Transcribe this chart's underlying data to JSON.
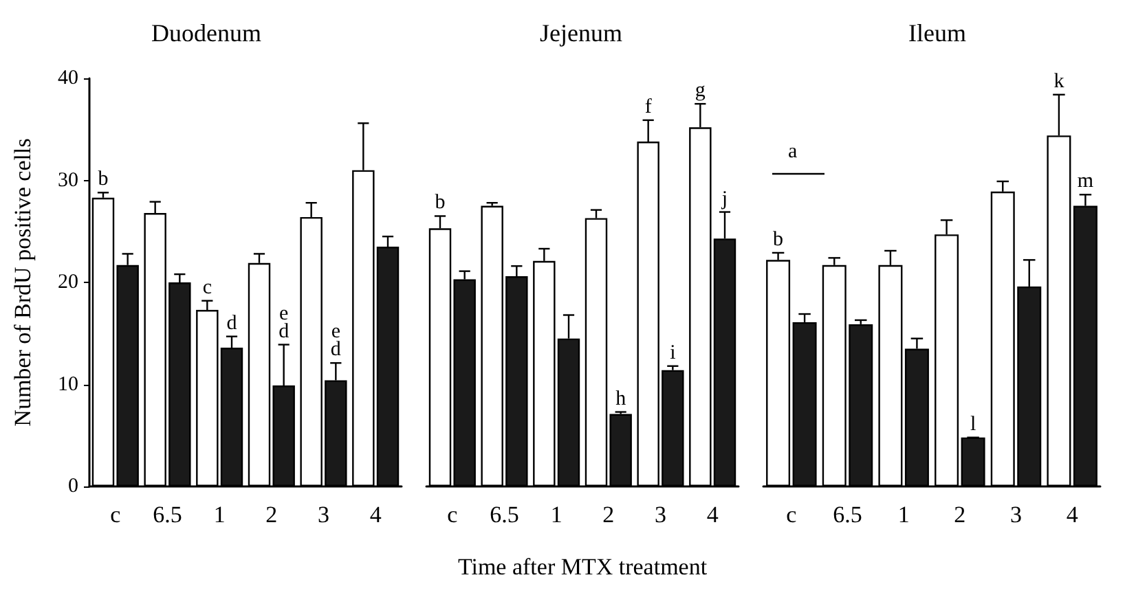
{
  "chart_data": [
    {
      "type": "bar",
      "title": "Duodenum",
      "ylabel": "Number of BrdU positive cells",
      "categories": [
        "c",
        "6.5",
        "1",
        "2",
        "3",
        "4"
      ],
      "ylim": [
        0,
        40
      ],
      "yticks": [
        0,
        10,
        20,
        30,
        40
      ],
      "grid": false,
      "series": [
        {
          "color": "#ffffff",
          "values": [
            28.3,
            26.8,
            17.3,
            21.9,
            26.4,
            31
          ],
          "errors": [
            [
              28.3,
              28.8
            ],
            [
              26.8,
              27.9
            ],
            [
              17.3,
              18.2
            ],
            [
              21.9,
              22.8
            ],
            [
              26.4,
              27.8
            ],
            [
              31,
              35.6
            ]
          ]
        },
        {
          "color": "#1a1a1a",
          "values": [
            21.7,
            20,
            13.6,
            9.9,
            10.4,
            23.5
          ],
          "errors": [
            [
              21.7,
              22.8
            ],
            [
              20,
              20.8
            ],
            [
              13.6,
              14.7
            ],
            [
              9.9,
              13.9
            ],
            [
              10.4,
              12.1
            ],
            [
              23.5,
              24.5
            ]
          ]
        }
      ],
      "annotations": [
        {
          "text": "b",
          "x": "c",
          "y": 28.3
        },
        {
          "text": "c",
          "x": "1",
          "y": 17.3
        },
        {
          "text": "d",
          "x": "1",
          "y": 13.6
        },
        {
          "text": "d",
          "x": "2",
          "y": 9.9
        },
        {
          "text": "e",
          "x": "2",
          "y": 9.9
        },
        {
          "text": "d",
          "x": "3",
          "y": 10.4
        },
        {
          "text": "e",
          "x": "3",
          "y": 10.4
        }
      ]
    },
    {
      "type": "bar",
      "title": "Jejenum",
      "xlabel": "Time after MTX treatment",
      "tick_labels": "x",
      "categories": [
        "c",
        "6.5",
        "1",
        "2",
        "3",
        "4"
      ],
      "ylim": [
        0,
        40
      ],
      "yticks": [
        0,
        10,
        20,
        30,
        40
      ],
      "grid": false,
      "series": [
        {
          "color": "#ffffff",
          "values": [
            25.3,
            27.5,
            22.1,
            26.3,
            33.8,
            35.2
          ],
          "errors": [
            [
              25.3,
              26.5
            ],
            [
              27.5,
              27.8
            ],
            [
              22.1,
              23.3
            ],
            [
              26.3,
              27.1
            ],
            [
              33.8,
              35.9
            ],
            [
              35.2,
              37.5
            ]
          ]
        },
        {
          "color": "#1a1a1a",
          "values": [
            20.3,
            20.6,
            14.5,
            7.1,
            11.4,
            24.3
          ],
          "errors": [
            [
              20.3,
              21.1
            ],
            [
              20.6,
              21.6
            ],
            [
              14.5,
              16.8
            ],
            [
              7.1,
              7.3
            ],
            [
              11.4,
              11.8
            ],
            [
              24.3,
              26.9
            ]
          ]
        }
      ],
      "annotations": [
        {
          "text": "b",
          "x": "c",
          "y": 25.3
        },
        {
          "text": "f",
          "x": "3",
          "y": 33.8
        },
        {
          "text": "g",
          "x": "4",
          "y": 35.2
        },
        {
          "text": "h",
          "x": "2",
          "y": 7.1
        },
        {
          "text": "i",
          "x": "3",
          "y": 11.4
        },
        {
          "text": "j",
          "x": "4",
          "y": 24.3
        }
      ]
    },
    {
      "type": "bar",
      "title": "Ileum",
      "tick_labels": "x",
      "categories": [
        "c",
        "6.5",
        "1",
        "2",
        "3",
        "4"
      ],
      "ylim": [
        0,
        40
      ],
      "yticks": [
        0,
        10,
        20,
        30,
        40
      ],
      "grid": false,
      "series": [
        {
          "color": "#ffffff",
          "values": [
            22.2,
            21.7,
            21.7,
            24.7,
            28.9,
            34.4
          ],
          "errors": [
            [
              22.2,
              22.9
            ],
            [
              21.7,
              22.4
            ],
            [
              21.7,
              23.1
            ],
            [
              24.7,
              26.1
            ],
            [
              28.9,
              29.9
            ],
            [
              34.4,
              38.4
            ]
          ]
        },
        {
          "color": "#1a1a1a",
          "values": [
            16.1,
            15.9,
            13.5,
            4.8,
            19.6,
            27.5
          ],
          "errors": [
            [
              16.1,
              16.9
            ],
            [
              15.9,
              16.3
            ],
            [
              13.5,
              14.5
            ],
            [
              4.8,
              4.8
            ],
            [
              19.6,
              22.2
            ],
            [
              27.5,
              28.6
            ]
          ]
        }
      ],
      "annotations": [
        "a",
        {
          "text": "b",
          "x": "c",
          "y": 22.2
        },
        {
          "text": "l",
          "x": "2",
          "y": 4.8
        },
        {
          "text": "k",
          "x": "4",
          "y": 34.4
        },
        {
          "text": "m",
          "x": "4",
          "y": 27.5
        }
      ]
    }
  ]
}
